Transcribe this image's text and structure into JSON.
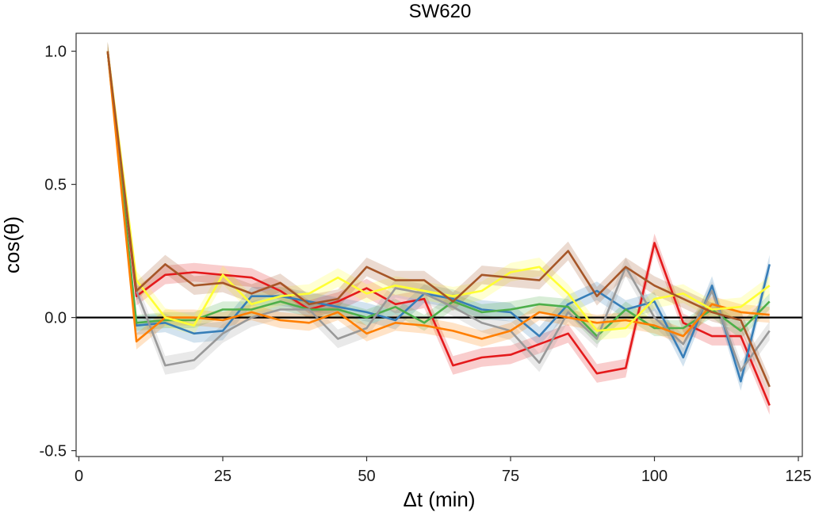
{
  "chart_data": {
    "type": "line",
    "title": "SW620",
    "xlabel": "Δt (min)",
    "ylabel": "cos(θ)",
    "xlim": [
      0,
      125
    ],
    "ylim": [
      -0.5,
      1.0
    ],
    "xticks": [
      0,
      25,
      50,
      75,
      100,
      125
    ],
    "yticks": [
      -0.5,
      0.0,
      0.5,
      1.0
    ],
    "ytick_labels": [
      "-0.5",
      "0.0",
      "0.5",
      "1.0"
    ],
    "reference_line_y": 0,
    "grid": false,
    "legend": "none",
    "x": [
      5,
      10,
      15,
      20,
      25,
      30,
      35,
      40,
      45,
      50,
      55,
      60,
      65,
      70,
      75,
      80,
      85,
      90,
      95,
      100,
      105,
      110,
      115,
      120
    ],
    "series": [
      {
        "color": "#e41a1c",
        "band_halfwidth": 0.035,
        "values": [
          1.0,
          0.08,
          0.16,
          0.17,
          0.16,
          0.15,
          0.1,
          0.03,
          0.06,
          0.11,
          0.05,
          0.07,
          -0.18,
          -0.15,
          -0.14,
          -0.1,
          -0.06,
          -0.21,
          -0.19,
          0.28,
          -0.02,
          -0.07,
          -0.07,
          -0.33
        ]
      },
      {
        "color": "#377eb8",
        "band_halfwidth": 0.035,
        "values": [
          1.0,
          -0.03,
          -0.02,
          -0.06,
          -0.05,
          0.08,
          0.08,
          0.06,
          0.04,
          0.02,
          -0.01,
          0.09,
          0.07,
          0.03,
          0.02,
          -0.07,
          0.05,
          0.1,
          0.03,
          0.06,
          -0.15,
          0.12,
          -0.24,
          0.2
        ]
      },
      {
        "color": "#4daf4a",
        "band_halfwidth": 0.03,
        "values": [
          1.0,
          -0.02,
          -0.01,
          -0.01,
          0.03,
          0.03,
          0.06,
          0.03,
          0.03,
          0.0,
          0.04,
          -0.02,
          0.06,
          0.02,
          0.03,
          0.05,
          0.04,
          -0.07,
          0.03,
          -0.04,
          -0.04,
          0.03,
          -0.05,
          0.06
        ]
      },
      {
        "color": "#999999",
        "band_halfwidth": 0.035,
        "values": [
          1.0,
          0.1,
          -0.18,
          -0.16,
          -0.06,
          0.0,
          0.03,
          0.03,
          -0.08,
          -0.04,
          0.11,
          0.09,
          0.04,
          -0.02,
          -0.05,
          -0.17,
          0.02,
          -0.08,
          0.19,
          0.0,
          -0.1,
          0.1,
          -0.2,
          -0.05
        ]
      },
      {
        "color": "#ff7f00",
        "band_halfwidth": 0.03,
        "values": [
          1.0,
          -0.09,
          0.0,
          0.0,
          -0.01,
          0.02,
          -0.01,
          -0.02,
          0.02,
          -0.06,
          -0.02,
          -0.03,
          -0.05,
          -0.08,
          -0.05,
          0.02,
          0.0,
          -0.02,
          -0.01,
          -0.03,
          -0.07,
          0.05,
          0.02,
          0.01
        ]
      },
      {
        "color": "#ffff33",
        "band_halfwidth": 0.035,
        "values": [
          1.0,
          0.14,
          0.0,
          -0.03,
          0.16,
          0.05,
          0.08,
          0.09,
          0.15,
          0.09,
          0.12,
          0.1,
          0.08,
          0.1,
          0.17,
          0.19,
          0.09,
          -0.05,
          -0.04,
          0.07,
          0.09,
          0.03,
          0.04,
          0.12
        ]
      },
      {
        "color": "#a65628",
        "band_halfwidth": 0.035,
        "values": [
          1.0,
          0.1,
          0.2,
          0.12,
          0.13,
          0.09,
          0.13,
          0.05,
          0.07,
          0.19,
          0.14,
          0.14,
          0.06,
          0.16,
          0.15,
          0.14,
          0.25,
          0.08,
          0.19,
          0.12,
          0.07,
          0.02,
          -0.01,
          -0.26
        ]
      }
    ]
  }
}
